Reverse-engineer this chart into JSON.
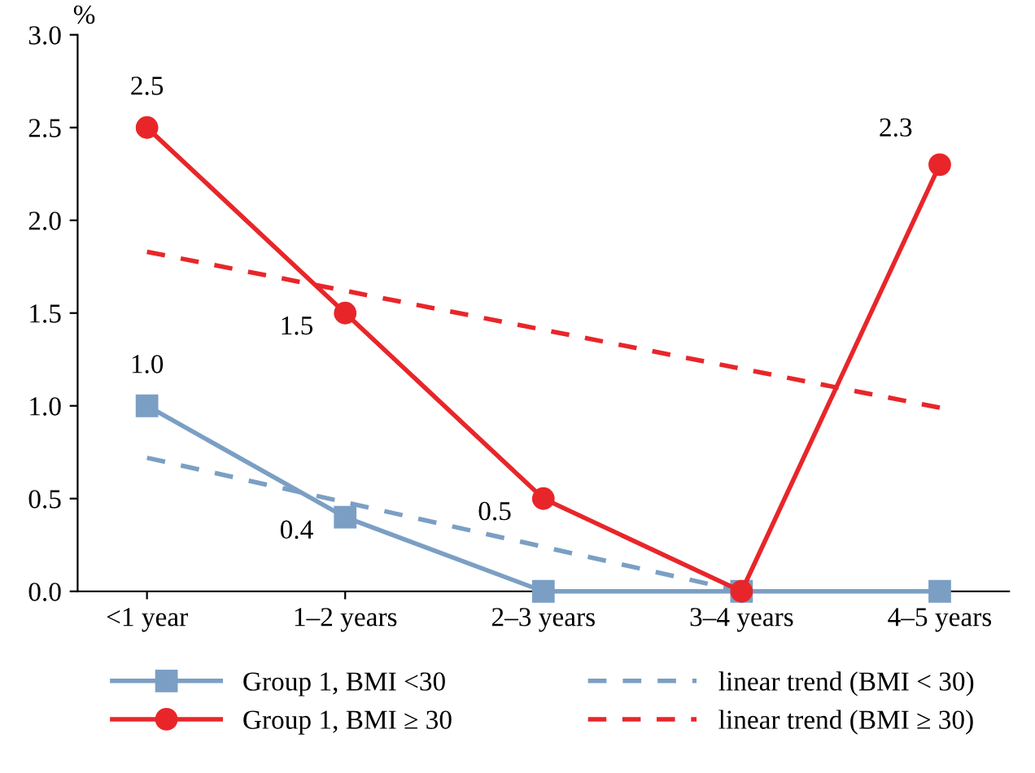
{
  "chart_data": {
    "type": "line",
    "ylabel": "%",
    "categories": [
      "<1 year",
      "1–2 years",
      "2–3 years",
      "3–4 years",
      "4–5 years"
    ],
    "ylim": [
      0,
      3.0
    ],
    "yticks": [
      {
        "value": 0,
        "label": "0.0"
      },
      {
        "value": 0.5,
        "label": "0.5"
      },
      {
        "value": 1.0,
        "label": "1.0"
      },
      {
        "value": 1.5,
        "label": "1.5"
      },
      {
        "value": 2.0,
        "label": "2.0"
      },
      {
        "value": 2.5,
        "label": "2.5"
      },
      {
        "value": 3.0,
        "label": "3.0"
      }
    ],
    "grid": false,
    "legend": "bottom",
    "series": [
      {
        "name": "Group 1, BMI <30",
        "color": "#7b9fc4",
        "marker": "square",
        "line_style": "solid",
        "values": [
          1.0,
          0.4,
          0,
          0,
          0
        ],
        "value_labels": [
          "1.0",
          "0.4",
          null,
          null,
          null
        ]
      },
      {
        "name": "Group 1, BMI ≥ 30",
        "color": "#e8262a",
        "marker": "circle",
        "line_style": "solid",
        "values": [
          2.5,
          1.5,
          0.5,
          0,
          2.3
        ],
        "value_labels": [
          "2.5",
          "1.5",
          "0.5",
          null,
          "2.3"
        ]
      },
      {
        "name": "linear trend (BMI < 30)",
        "color": "#7b9fc4",
        "marker": "none",
        "line_style": "dashed",
        "values": [
          0.72,
          0.48,
          0.24,
          0.0,
          null
        ]
      },
      {
        "name": "linear trend (BMI ≥ 30)",
        "color": "#e8262a",
        "marker": "none",
        "line_style": "dashed",
        "values": [
          1.83,
          1.62,
          1.41,
          1.2,
          0.99
        ]
      }
    ]
  }
}
